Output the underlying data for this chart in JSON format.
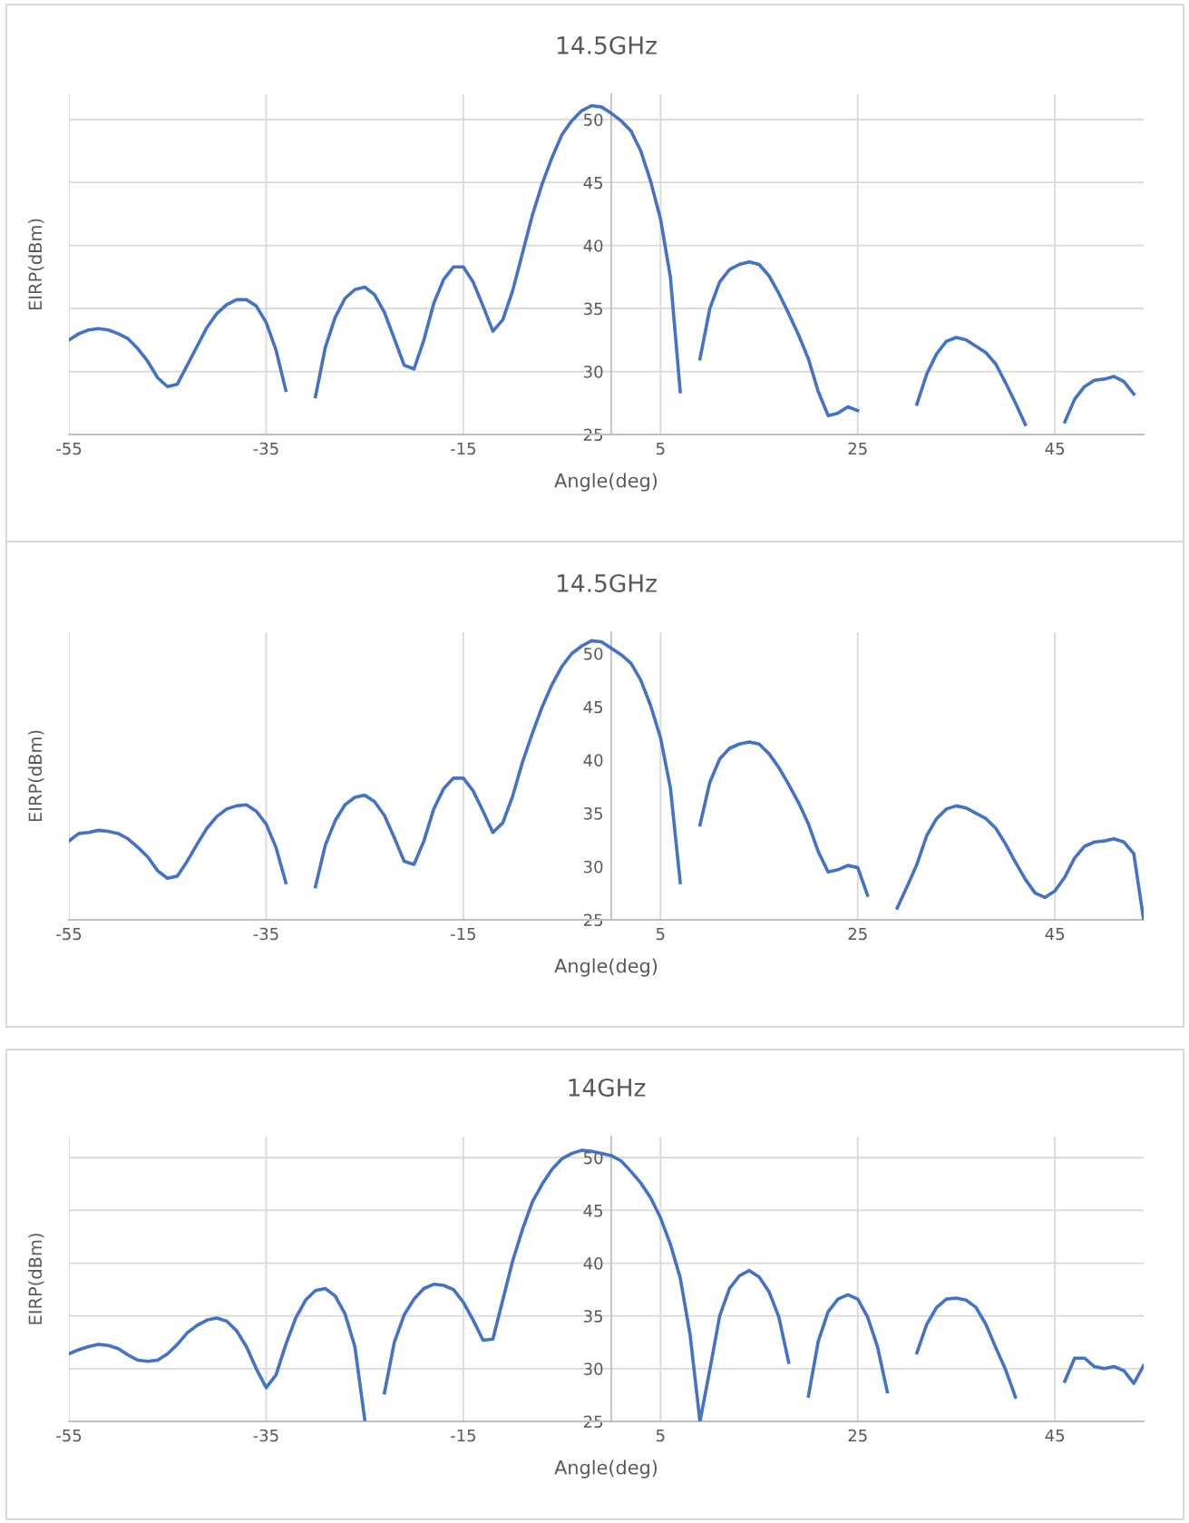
{
  "chart_data": [
    {
      "type": "line",
      "title": "14.5GHz",
      "xlabel": "Angle(deg)",
      "ylabel": "EIRP(dBm)",
      "categories": [
        "-55",
        null,
        null,
        null,
        null,
        null,
        null,
        null,
        null,
        null,
        null,
        null,
        null,
        null,
        null,
        null,
        null,
        null,
        null,
        null,
        "-35",
        null,
        null,
        null,
        null,
        null,
        null,
        null,
        null,
        null,
        null,
        null,
        null,
        null,
        null,
        null,
        null,
        null,
        null,
        null,
        "-15",
        null,
        null,
        null,
        null,
        null,
        null,
        null,
        null,
        null,
        null,
        null,
        null,
        null,
        null,
        null,
        null,
        null,
        null,
        null,
        "5",
        null,
        null,
        null,
        null,
        null,
        null,
        null,
        null,
        null,
        null,
        null,
        null,
        null,
        null,
        null,
        null,
        null,
        null,
        null,
        "25",
        null,
        null,
        null,
        null,
        null,
        null,
        null,
        null,
        null,
        null,
        null,
        null,
        null,
        null,
        null,
        null,
        null,
        null,
        null,
        "45",
        null,
        null,
        null,
        null,
        null,
        null,
        null,
        null,
        null
      ],
      "series": [
        {
          "color": "#4472c4",
          "values": [
            32.5,
            33.0,
            33.3,
            33.4,
            33.3,
            33.0,
            32.6,
            31.8,
            30.8,
            29.5,
            28.8,
            29.0,
            30.5,
            32.0,
            33.5,
            34.6,
            35.3,
            35.7,
            35.7,
            35.2,
            33.9,
            31.7,
            28.5,
            null,
            null,
            28.0,
            31.9,
            34.3,
            35.8,
            36.5,
            36.7,
            36.1,
            34.7,
            32.6,
            30.5,
            30.2,
            32.5,
            35.4,
            37.3,
            38.3,
            38.3,
            37.1,
            35.2,
            33.2,
            34.1,
            36.4,
            39.4,
            42.4,
            44.9,
            47.0,
            48.8,
            49.9,
            50.7,
            51.1,
            51.0,
            50.5,
            49.9,
            49.1,
            47.5,
            45.1,
            42.1,
            37.5,
            28.4,
            null,
            31.0,
            35.0,
            37.1,
            38.1,
            38.5,
            38.7,
            38.5,
            37.6,
            36.2,
            34.6,
            32.9,
            31.0,
            28.4,
            26.5,
            26.7,
            27.2,
            26.9,
            null,
            null,
            null,
            null,
            null,
            27.4,
            29.8,
            31.4,
            32.4,
            32.7,
            32.5,
            32.0,
            31.5,
            30.6,
            29.1,
            27.5,
            25.8,
            null,
            null,
            null,
            26.0,
            27.8,
            28.8,
            29.3,
            29.4,
            29.6,
            29.2,
            28.2,
            null
          ]
        }
      ],
      "ylim": [
        25,
        52
      ],
      "yticks": [
        25,
        30,
        35,
        40,
        45,
        50
      ],
      "grid": true
    },
    {
      "type": "line",
      "title": "14.5GHz",
      "xlabel": "Angle(deg)",
      "ylabel": "EIRP(dBm)",
      "categories": [
        "-55",
        null,
        null,
        null,
        null,
        null,
        null,
        null,
        null,
        null,
        null,
        null,
        null,
        null,
        null,
        null,
        null,
        null,
        null,
        null,
        "-35",
        null,
        null,
        null,
        null,
        null,
        null,
        null,
        null,
        null,
        null,
        null,
        null,
        null,
        null,
        null,
        null,
        null,
        null,
        null,
        "-15",
        null,
        null,
        null,
        null,
        null,
        null,
        null,
        null,
        null,
        null,
        null,
        null,
        null,
        null,
        null,
        null,
        null,
        null,
        null,
        "5",
        null,
        null,
        null,
        null,
        null,
        null,
        null,
        null,
        null,
        null,
        null,
        null,
        null,
        null,
        null,
        null,
        null,
        null,
        null,
        "25",
        null,
        null,
        null,
        null,
        null,
        null,
        null,
        null,
        null,
        null,
        null,
        null,
        null,
        null,
        null,
        null,
        null,
        null,
        null,
        "45",
        null,
        null,
        null,
        null,
        null,
        null,
        null,
        null,
        null
      ],
      "series": [
        {
          "color": "#4472c4",
          "values": [
            32.4,
            33.1,
            33.2,
            33.4,
            33.3,
            33.1,
            32.6,
            31.8,
            30.9,
            29.6,
            28.9,
            29.1,
            30.5,
            32.1,
            33.6,
            34.7,
            35.4,
            35.7,
            35.8,
            35.2,
            34.0,
            31.8,
            28.5,
            null,
            null,
            28.1,
            32.0,
            34.3,
            35.8,
            36.5,
            36.7,
            36.1,
            34.8,
            32.7,
            30.5,
            30.2,
            32.4,
            35.4,
            37.3,
            38.3,
            38.3,
            37.1,
            35.2,
            33.2,
            34.1,
            36.6,
            39.8,
            42.5,
            45.0,
            47.1,
            48.8,
            50.0,
            50.7,
            51.2,
            51.1,
            50.5,
            49.9,
            49.1,
            47.5,
            45.1,
            42.1,
            37.4,
            28.5,
            null,
            33.9,
            37.9,
            40.1,
            41.1,
            41.5,
            41.7,
            41.5,
            40.6,
            39.3,
            37.7,
            36.0,
            34.0,
            31.4,
            29.5,
            29.7,
            30.1,
            29.9,
            27.3,
            null,
            null,
            26.1,
            28.1,
            30.2,
            32.9,
            34.5,
            35.4,
            35.7,
            35.5,
            35.0,
            34.5,
            33.6,
            32.1,
            30.4,
            28.8,
            27.5,
            27.1,
            27.7,
            29.0,
            30.8,
            31.9,
            32.3,
            32.4,
            32.6,
            32.3,
            31.2,
            25.0
          ]
        }
      ],
      "ylim": [
        25,
        52
      ],
      "yticks": [
        25,
        30,
        35,
        40,
        45,
        50
      ],
      "grid": "x"
    },
    {
      "type": "line",
      "title": "14GHz",
      "xlabel": "Angle(deg)",
      "ylabel": "EIRP(dBm)",
      "categories": [
        "-55",
        null,
        null,
        null,
        null,
        null,
        null,
        null,
        null,
        null,
        null,
        null,
        null,
        null,
        null,
        null,
        null,
        null,
        null,
        null,
        "-35",
        null,
        null,
        null,
        null,
        null,
        null,
        null,
        null,
        null,
        null,
        null,
        null,
        null,
        null,
        null,
        null,
        null,
        null,
        null,
        "-15",
        null,
        null,
        null,
        null,
        null,
        null,
        null,
        null,
        null,
        null,
        null,
        null,
        null,
        null,
        null,
        null,
        null,
        null,
        null,
        "5",
        null,
        null,
        null,
        null,
        null,
        null,
        null,
        null,
        null,
        null,
        null,
        null,
        null,
        null,
        null,
        null,
        null,
        null,
        null,
        "25",
        null,
        null,
        null,
        null,
        null,
        null,
        null,
        null,
        null,
        null,
        null,
        null,
        null,
        null,
        null,
        null,
        null,
        null,
        null,
        "45",
        null,
        null,
        null,
        null,
        null,
        null,
        null,
        null,
        null
      ],
      "series": [
        {
          "color": "#4472c4",
          "values": [
            31.4,
            31.8,
            32.1,
            32.3,
            32.2,
            31.9,
            31.3,
            30.8,
            30.7,
            30.8,
            31.4,
            32.3,
            33.4,
            34.1,
            34.6,
            34.8,
            34.5,
            33.6,
            32.1,
            30.0,
            28.2,
            29.4,
            32.3,
            34.8,
            36.5,
            37.4,
            37.6,
            36.9,
            35.2,
            32.1,
            25.2,
            null,
            27.7,
            32.5,
            35.1,
            36.6,
            37.6,
            38.0,
            37.9,
            37.5,
            36.3,
            34.6,
            32.7,
            32.8,
            36.5,
            40.2,
            43.2,
            45.8,
            47.5,
            48.9,
            49.9,
            50.4,
            50.7,
            50.6,
            50.4,
            50.2,
            49.7,
            48.7,
            47.6,
            46.2,
            44.3,
            41.8,
            38.6,
            33.2,
            25.0,
            29.9,
            35.0,
            37.6,
            38.8,
            39.3,
            38.7,
            37.3,
            34.9,
            30.6,
            null,
            27.4,
            32.6,
            35.4,
            36.6,
            37.0,
            36.6,
            34.9,
            32.1,
            27.8,
            null,
            null,
            31.5,
            34.2,
            35.8,
            36.6,
            36.7,
            36.5,
            35.8,
            34.2,
            32.0,
            29.9,
            27.3,
            null,
            null,
            null,
            null,
            28.8,
            31.0,
            31.0,
            30.2,
            30.0,
            30.2,
            29.8,
            28.6,
            30.3
          ]
        }
      ],
      "ylim": [
        25,
        52
      ],
      "yticks": [
        25,
        30,
        35,
        40,
        45,
        50
      ],
      "grid": true
    }
  ]
}
